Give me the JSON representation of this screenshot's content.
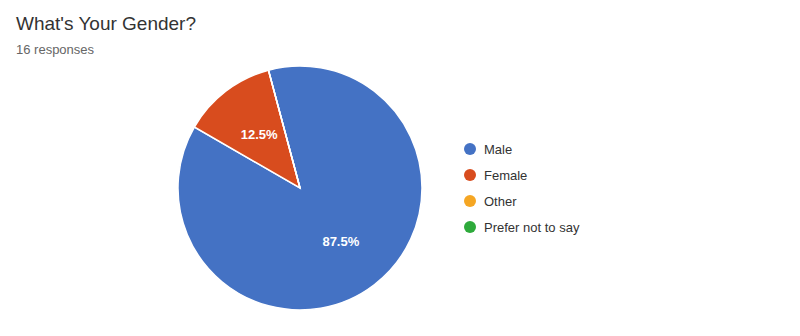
{
  "chart_data": {
    "type": "pie",
    "title": "What's Your Gender?",
    "subtitle": "16 responses",
    "categories": [
      "Male",
      "Female",
      "Other",
      "Prefer not to say"
    ],
    "values": [
      87.5,
      12.5,
      0,
      0
    ],
    "value_labels": [
      "87.5%",
      "12.5%",
      null,
      null
    ],
    "colors": [
      "#4472c4",
      "#d84c1e",
      "#f5a623",
      "#2eaa3b"
    ],
    "data_labels": true,
    "legend": "right"
  }
}
